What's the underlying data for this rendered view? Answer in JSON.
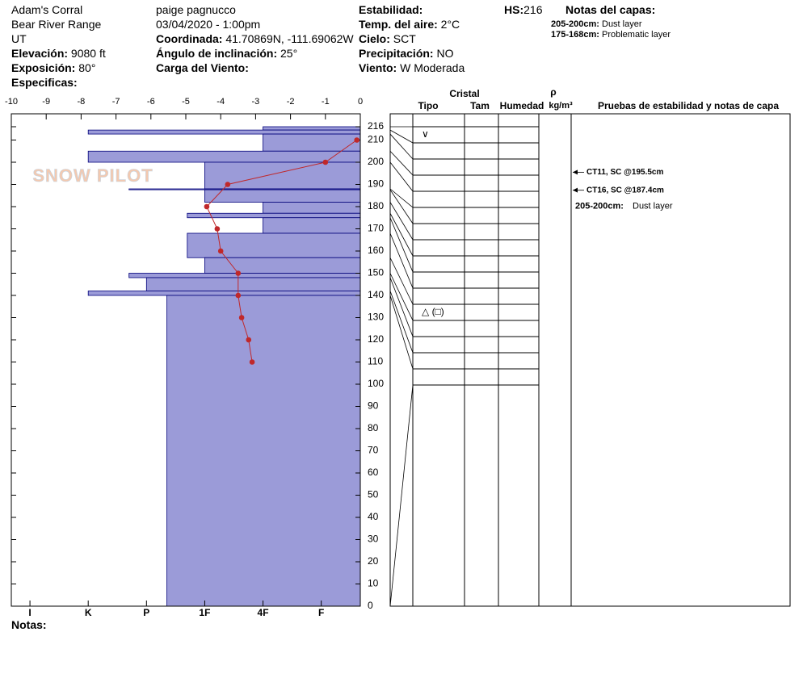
{
  "header": {
    "site": "Adam's Corral",
    "range": "Bear River Range",
    "state": "UT",
    "elevation": {
      "label": "Elevación:",
      "value": "9080 ft"
    },
    "aspect": {
      "label": "Exposición:",
      "value": "80°"
    },
    "specifics": {
      "label": "Especificas:"
    },
    "observer": "paige pagnucco",
    "datetime": "03/04/2020 - 1:00pm",
    "coords": {
      "label": "Coordinada:",
      "value": "41.70869N, -111.69062W"
    },
    "slope": {
      "label": "Ángulo de inclinación:",
      "value": "25°"
    },
    "wind_load": {
      "label": "Carga del Viento:"
    },
    "stability": {
      "label": "Estabilidad:"
    },
    "air_temp": {
      "label": "Temp. del aire:",
      "value": "2°C"
    },
    "sky": {
      "label": "Cielo:",
      "value": "SCT"
    },
    "precip": {
      "label": "Precipitación:",
      "value": "NO"
    },
    "wind": {
      "label": "Viento:",
      "value": "W Moderada"
    },
    "hs": {
      "label": "HS:",
      "value": "216"
    },
    "layer_notes": {
      "title": "Notas del capas:",
      "items": [
        {
          "range": "205-200cm:",
          "text": "Dust layer"
        },
        {
          "range": "175-168cm:",
          "text": "Problematic layer"
        }
      ]
    },
    "notes_label": "Notas:"
  },
  "chart_data": {
    "type": "snowpit",
    "watermark": "SNOW PILOT",
    "ylim": [
      0,
      216
    ],
    "yticks": [
      0,
      10,
      20,
      30,
      40,
      50,
      60,
      70,
      80,
      90,
      100,
      110,
      120,
      130,
      140,
      150,
      160,
      170,
      180,
      190,
      200,
      210,
      216
    ],
    "xlim": [
      -10,
      0
    ],
    "xticks": [
      -10,
      -9,
      -8,
      -7,
      -6,
      -5,
      -4,
      -3,
      -2,
      -1,
      0
    ],
    "hardness_lim": [
      6.32,
      0.33
    ],
    "hardness_ticks": [
      {
        "value": 6,
        "label": "I"
      },
      {
        "value": 5,
        "label": "K"
      },
      {
        "value": 4,
        "label": "P"
      },
      {
        "value": 3,
        "label": "1F"
      },
      {
        "value": 2,
        "label": "4F"
      },
      {
        "value": 1,
        "label": "F"
      }
    ],
    "layer_color": "#9b9bd8",
    "layers": {
      "top": [
        216,
        214.5,
        212.7,
        205,
        200,
        188,
        187.6,
        182,
        177,
        175,
        168,
        157,
        150,
        148,
        142,
        140
      ],
      "bottom": [
        214.5,
        212.7,
        205,
        200,
        188,
        187.6,
        182,
        177,
        175,
        168,
        157,
        150,
        148,
        142,
        140,
        0
      ],
      "hardness": [
        2,
        5,
        2,
        5,
        3,
        4.3,
        3,
        2,
        3.3,
        2,
        3.3,
        3,
        4.3,
        4,
        5,
        3.65
      ],
      "grain": [
        "∨",
        null,
        null,
        null,
        null,
        null,
        null,
        null,
        null,
        null,
        null,
        "△ (□)",
        null,
        null,
        null,
        null
      ]
    },
    "temperature": {
      "color": "#c0282a",
      "height": [
        210,
        200,
        190,
        180,
        170,
        160,
        150,
        140,
        130,
        120,
        110
      ],
      "values": [
        -0.1,
        -1,
        -3.8,
        -4.4,
        -4.1,
        -4,
        -3.5,
        -3.5,
        -3.4,
        -3.2,
        -3.1
      ]
    },
    "table": {
      "cristal": "Cristal",
      "tipo": "Tipo",
      "tam": "Tam",
      "humedad": "Humedad",
      "rho": "ρ",
      "density_unit": "kg/m³",
      "notes": "Pruebas de estabilidad y notas de capa"
    },
    "tests": [
      {
        "label": "CT11, SC @195.5cm",
        "height": 195.5
      },
      {
        "label": "CT16, SC @187.4cm",
        "height": 187.4
      }
    ],
    "layer_note": {
      "range": "205-200cm:",
      "text": "Dust layer"
    }
  }
}
